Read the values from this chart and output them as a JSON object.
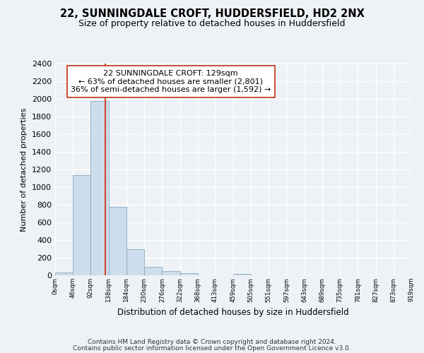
{
  "title1": "22, SUNNINGDALE CROFT, HUDDERSFIELD, HD2 2NX",
  "title2": "Size of property relative to detached houses in Huddersfield",
  "xlabel": "Distribution of detached houses by size in Huddersfield",
  "ylabel": "Number of detached properties",
  "bar_edges": [
    0,
    46,
    92,
    138,
    184,
    230,
    276,
    322,
    368,
    413,
    459,
    505,
    551,
    597,
    643,
    689,
    735,
    781,
    827,
    873,
    919
  ],
  "bar_heights": [
    35,
    1140,
    1980,
    780,
    295,
    100,
    45,
    25,
    0,
    0,
    20,
    0,
    0,
    0,
    0,
    0,
    0,
    0,
    0,
    0
  ],
  "bar_color": "#ccdded",
  "bar_edge_color": "#8aaabe",
  "vline_x": 129,
  "vline_color": "#cc2200",
  "annotation_line1": "22 SUNNINGDALE CROFT: 129sqm",
  "annotation_line2": "← 63% of detached houses are smaller (2,801)",
  "annotation_line3": "36% of semi-detached houses are larger (1,592) →",
  "annotation_box_color": "#ffffff",
  "annotation_box_edge_color": "#bb2200",
  "ylim": [
    0,
    2400
  ],
  "yticks": [
    0,
    200,
    400,
    600,
    800,
    1000,
    1200,
    1400,
    1600,
    1800,
    2000,
    2200,
    2400
  ],
  "tick_labels": [
    "0sqm",
    "46sqm",
    "92sqm",
    "138sqm",
    "184sqm",
    "230sqm",
    "276sqm",
    "322sqm",
    "368sqm",
    "413sqm",
    "459sqm",
    "505sqm",
    "551sqm",
    "597sqm",
    "643sqm",
    "689sqm",
    "735sqm",
    "781sqm",
    "827sqm",
    "873sqm",
    "919sqm"
  ],
  "footnote1": "Contains HM Land Registry data © Crown copyright and database right 2024.",
  "footnote2": "Contains public sector information licensed under the Open Government Licence v3.0.",
  "bg_color": "#eef2f6",
  "plot_bg_color": "#eef2f6",
  "grid_color": "#ffffff",
  "title1_fontsize": 10.5,
  "title2_fontsize": 9,
  "xlabel_fontsize": 8.5,
  "ylabel_fontsize": 8,
  "annotation_fontsize": 8,
  "footnote_fontsize": 6.5,
  "ytick_fontsize": 8,
  "xtick_fontsize": 6.2
}
